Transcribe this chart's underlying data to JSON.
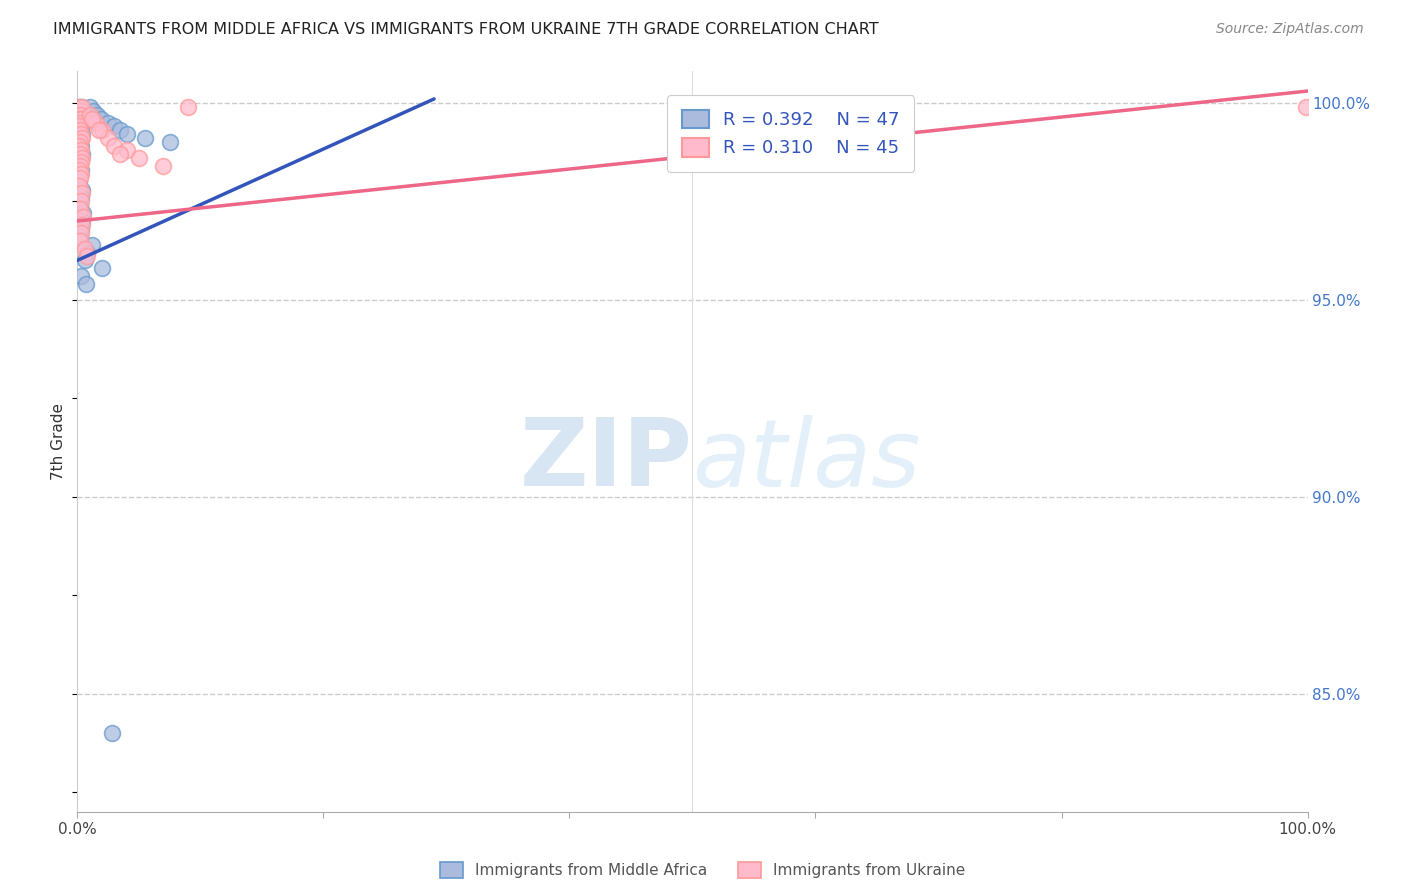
{
  "title": "IMMIGRANTS FROM MIDDLE AFRICA VS IMMIGRANTS FROM UKRAINE 7TH GRADE CORRELATION CHART",
  "source": "Source: ZipAtlas.com",
  "ylabel": "7th Grade",
  "y_tick_labels": [
    "100.0%",
    "95.0%",
    "90.0%",
    "85.0%"
  ],
  "y_tick_values": [
    1.0,
    0.95,
    0.9,
    0.85
  ],
  "legend1_R": "0.392",
  "legend1_N": "47",
  "legend2_R": "0.310",
  "legend2_N": "45",
  "legend1_label": "Immigrants from Middle Africa",
  "legend2_label": "Immigrants from Ukraine",
  "blue_face_color": "#aabbdd",
  "blue_edge_color": "#6699CC",
  "pink_face_color": "#ffbbcc",
  "pink_edge_color": "#FF9999",
  "blue_line_color": "#3355BB",
  "pink_line_color": "#EE6688",
  "watermark_color": "#ddeeff",
  "blue_scatter_x": [
    0.001,
    0.002,
    0.003,
    0.004,
    0.002,
    0.001,
    0.003,
    0.002,
    0.001,
    0.002,
    0.003,
    0.004,
    0.002,
    0.001,
    0.003,
    0.002,
    0.004,
    0.003,
    0.002,
    0.001,
    0.003,
    0.002,
    0.001,
    0.004,
    0.003,
    0.002,
    0.005,
    0.004,
    0.003,
    0.002,
    0.01,
    0.013,
    0.016,
    0.019,
    0.025,
    0.03,
    0.035,
    0.04,
    0.055,
    0.075,
    0.012,
    0.008,
    0.006,
    0.02,
    0.003,
    0.007,
    0.028
  ],
  "blue_scatter_y": [
    0.999,
    0.998,
    0.998,
    0.999,
    0.997,
    0.996,
    0.997,
    0.996,
    0.995,
    0.994,
    0.993,
    0.992,
    0.991,
    0.99,
    0.989,
    0.988,
    0.987,
    0.986,
    0.985,
    0.984,
    0.983,
    0.982,
    0.98,
    0.978,
    0.976,
    0.974,
    0.972,
    0.97,
    0.968,
    0.966,
    0.999,
    0.998,
    0.997,
    0.996,
    0.995,
    0.994,
    0.993,
    0.992,
    0.991,
    0.99,
    0.964,
    0.962,
    0.96,
    0.958,
    0.956,
    0.954,
    0.84
  ],
  "pink_scatter_x": [
    0.001,
    0.002,
    0.003,
    0.004,
    0.002,
    0.001,
    0.003,
    0.002,
    0.001,
    0.002,
    0.003,
    0.004,
    0.002,
    0.001,
    0.003,
    0.002,
    0.004,
    0.003,
    0.002,
    0.001,
    0.003,
    0.002,
    0.001,
    0.004,
    0.003,
    0.002,
    0.005,
    0.004,
    0.003,
    0.002,
    0.01,
    0.015,
    0.02,
    0.025,
    0.03,
    0.012,
    0.018,
    0.006,
    0.008,
    0.04,
    0.05,
    0.07,
    0.09,
    0.035,
    0.999
  ],
  "pink_scatter_y": [
    0.999,
    0.998,
    0.998,
    0.999,
    0.997,
    0.996,
    0.996,
    0.995,
    0.994,
    0.993,
    0.992,
    0.991,
    0.99,
    0.989,
    0.988,
    0.987,
    0.986,
    0.985,
    0.984,
    0.983,
    0.982,
    0.981,
    0.979,
    0.977,
    0.975,
    0.973,
    0.971,
    0.969,
    0.967,
    0.965,
    0.997,
    0.995,
    0.993,
    0.991,
    0.989,
    0.996,
    0.993,
    0.963,
    0.961,
    0.988,
    0.986,
    0.984,
    0.999,
    0.987,
    0.999
  ],
  "blue_line_start_x": 0.0,
  "blue_line_start_y": 0.96,
  "blue_line_end_x": 0.29,
  "blue_line_end_y": 1.001,
  "pink_line_start_x": 0.0,
  "pink_line_start_y": 0.97,
  "pink_line_end_x": 1.0,
  "pink_line_end_y": 1.003,
  "xlim": [
    0.0,
    1.0
  ],
  "ylim": [
    0.82,
    1.008
  ],
  "xtick_positions": [
    0.0,
    0.2,
    0.4,
    0.6,
    0.8,
    1.0
  ],
  "xtick_labels": [
    "0.0%",
    "",
    "",
    "",
    "",
    "100.0%"
  ]
}
